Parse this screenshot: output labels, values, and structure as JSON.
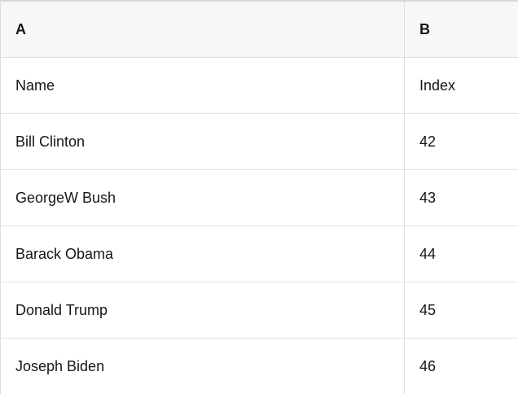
{
  "table": {
    "headers": [
      "A",
      "B"
    ],
    "rows": [
      [
        "Name",
        "Index"
      ],
      [
        "Bill Clinton",
        "42"
      ],
      [
        "GeorgeW Bush",
        "43"
      ],
      [
        "Barack Obama",
        "44"
      ],
      [
        "Donald Trump",
        "45"
      ],
      [
        "Joseph Biden",
        "46"
      ]
    ]
  },
  "colors": {
    "header_background": "#f7f7f7",
    "row_background": "#ffffff",
    "border": "#dcdcdc",
    "text": "#161616"
  }
}
